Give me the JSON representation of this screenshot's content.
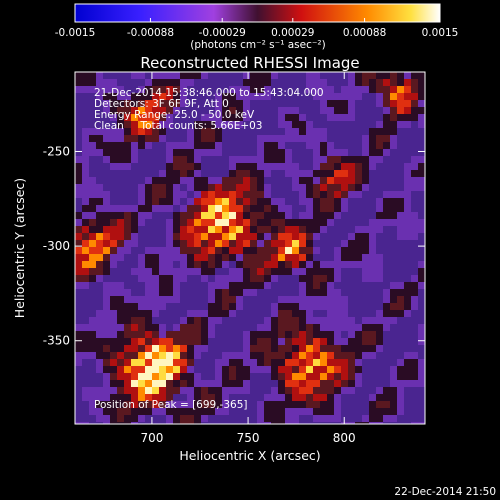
{
  "colorbar": {
    "ticks": [
      "-0.0015",
      "-0.00088",
      "-0.00029",
      "0.00029",
      "0.00088",
      "0.0015"
    ],
    "tick_values": [
      -0.0015,
      -0.00088,
      -0.00029,
      0.00029,
      0.00088,
      0.0015
    ],
    "range": [
      -0.0015,
      0.0015
    ],
    "unit_label": "(photons cm⁻² s⁻¹ asec⁻²)",
    "colormap": "rainbow-blue-to-white"
  },
  "title": "Reconstructed RHESSI Image",
  "annotations": {
    "time_range": "21-Dec-2014 15:38:46.000 to 15:43:04.000",
    "detectors": "Detectors: 3F 6F 9F, Att 0",
    "energy": "Energy Range: 25.0 - 50.0 keV",
    "method": "Clean     Total counts: 5.66E+03",
    "peak": "Position of Peak = [699,-365]"
  },
  "axes": {
    "xlabel": "Heliocentric X (arcsec)",
    "ylabel": "Heliocentric Y (arcsec)",
    "xticks": [
      700,
      750,
      800
    ],
    "yticks": [
      -250,
      -300,
      -350
    ],
    "xlim": [
      660,
      842
    ],
    "ylim": [
      -394,
      -208
    ]
  },
  "timestamp": "22-Dec-2014 21:50",
  "image": {
    "type": "heatmap",
    "peak": [
      699,
      -365
    ],
    "colors": {
      "background": "#5a2aa0",
      "dark": "#1a0a1a",
      "red": "#c81414",
      "orange": "#ff8a00",
      "yellow": "#ffe060"
    }
  }
}
